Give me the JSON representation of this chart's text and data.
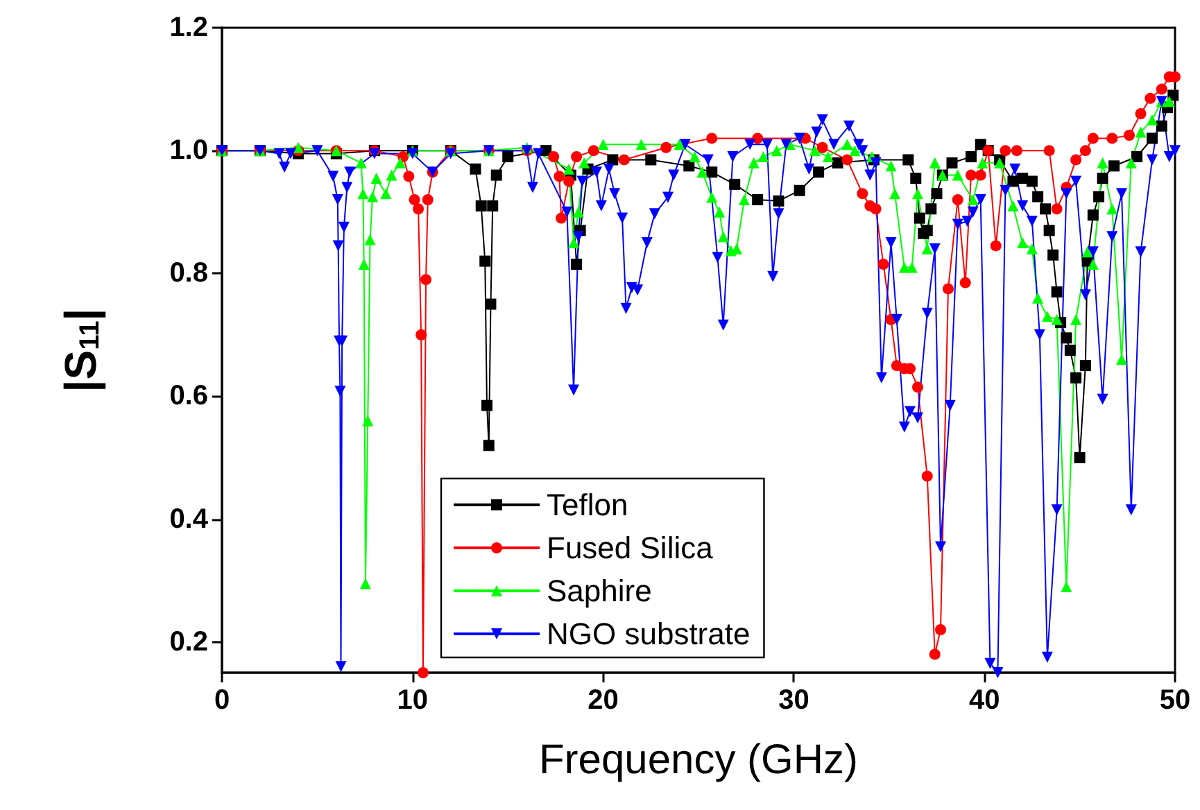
{
  "chart_data": {
    "type": "line",
    "xlabel": "Frequency (GHz)",
    "ylabel": "|S$_{11}$|",
    "xlim": [
      0,
      50
    ],
    "xticks": [
      0,
      10,
      20,
      30,
      40,
      50
    ],
    "ylim": [
      0.15,
      1.2
    ],
    "yticks": [
      0.2,
      0.4,
      0.6,
      0.8,
      {
        "value": 1.0,
        "label": "1.0"
      },
      1.2
    ],
    "grid": false,
    "legend": "bottom",
    "line_style": "solid",
    "series": [
      {
        "name": "Teflon",
        "color": "#000000",
        "marker": "square",
        "x": [
          0,
          2,
          4,
          6,
          8,
          10,
          12,
          13.3,
          13.6,
          13.8,
          13.9,
          14.0,
          14.1,
          14.2,
          14.4,
          15,
          17,
          18.3,
          18.6,
          18.8,
          19.2,
          20.5,
          22.5,
          24.5,
          25.7,
          26.9,
          28.1,
          29.2,
          30.3,
          31.3,
          32.3,
          34.2,
          36.0,
          36.4,
          36.6,
          36.8,
          37.0,
          37.2,
          37.5,
          37.8,
          38.3,
          39.3,
          39.8,
          40.2,
          40.8,
          41.5,
          42.0,
          42.5,
          42.8,
          43.2,
          43.4,
          43.6,
          43.8,
          44.0,
          44.3,
          44.5,
          44.8,
          45.0,
          45.3,
          45.4,
          45.7,
          46.0,
          46.2,
          46.8,
          48.0,
          48.8,
          49.3,
          49.6,
          49.9
        ],
        "values": [
          1.0,
          1.0,
          0.995,
          0.995,
          1.0,
          1.0,
          1.0,
          0.97,
          0.91,
          0.82,
          0.585,
          0.52,
          0.75,
          0.91,
          0.96,
          0.99,
          1.0,
          0.96,
          0.815,
          0.87,
          0.97,
          0.985,
          0.985,
          0.975,
          0.965,
          0.945,
          0.92,
          0.918,
          0.935,
          0.965,
          0.98,
          0.985,
          0.985,
          0.955,
          0.89,
          0.865,
          0.87,
          0.905,
          0.93,
          0.96,
          0.98,
          0.99,
          1.01,
          1.0,
          0.985,
          0.95,
          0.955,
          0.95,
          0.925,
          0.905,
          0.87,
          0.83,
          0.77,
          0.72,
          0.695,
          0.675,
          0.63,
          0.5,
          0.65,
          0.82,
          0.895,
          0.925,
          0.955,
          0.975,
          0.99,
          1.02,
          1.04,
          1.07,
          1.09
        ]
      },
      {
        "name": "Fused Silica",
        "color": "#ff0000",
        "marker": "circle",
        "x": [
          0,
          2,
          4,
          6,
          8,
          9.5,
          9.8,
          10.1,
          10.3,
          10.45,
          10.55,
          10.7,
          10.8,
          11.05,
          12,
          14,
          16,
          17.4,
          17.7,
          17.8,
          18.2,
          18.6,
          19.5,
          21.1,
          23.3,
          25.7,
          28.1,
          30.6,
          31.5,
          32.8,
          33.6,
          34.0,
          34.3,
          34.7,
          35.1,
          35.4,
          35.8,
          36.1,
          36.5,
          37.0,
          37.4,
          37.7,
          38.1,
          38.6,
          39.0,
          39.3,
          39.8,
          40.2,
          40.6,
          41.1,
          41.7,
          43.4,
          43.8,
          44.3,
          44.8,
          45.3,
          45.7,
          46.7,
          47.6,
          48.2,
          48.7,
          49.3,
          49.7,
          50
        ],
        "values": [
          1.0,
          1.0,
          1.0,
          1.0,
          1.0,
          0.99,
          0.958,
          0.92,
          0.905,
          0.7,
          0.15,
          0.79,
          0.92,
          0.965,
          1.0,
          1.0,
          1.0,
          0.99,
          0.958,
          0.89,
          0.95,
          0.99,
          1.0,
          0.985,
          1.005,
          1.02,
          1.02,
          1.02,
          1.005,
          0.985,
          0.93,
          0.91,
          0.905,
          0.815,
          0.725,
          0.65,
          0.645,
          0.645,
          0.615,
          0.47,
          0.18,
          0.22,
          0.775,
          0.92,
          0.785,
          0.96,
          0.96,
          1.0,
          0.845,
          1.0,
          1.0,
          1.0,
          0.905,
          0.94,
          0.985,
          1.0,
          1.02,
          1.02,
          1.025,
          1.06,
          1.085,
          1.1,
          1.12,
          1.12
        ]
      },
      {
        "name": "Saphire",
        "color": "#00ff00",
        "marker": "triangle",
        "x": [
          0,
          2,
          4,
          6,
          7.3,
          7.4,
          7.45,
          7.53,
          7.65,
          7.77,
          7.9,
          8.1,
          8.6,
          8.9,
          9.35,
          10,
          12,
          14,
          16,
          18.2,
          18.45,
          18.7,
          19,
          20,
          22,
          24,
          24.8,
          25.2,
          25.7,
          26.1,
          26.3,
          26.7,
          27.0,
          27.4,
          27.9,
          28.4,
          29.1,
          29.8,
          31.1,
          31.8,
          32.8,
          33.2,
          34.1,
          35.1,
          35.3,
          35.8,
          36.2,
          36.5,
          37.0,
          37.4,
          37.8,
          38.6,
          39.4,
          39.9,
          40.8,
          41.5,
          42.0,
          42.5,
          42.8,
          43.3,
          43.8,
          44.3,
          44.8,
          45.4,
          45.7,
          46.2,
          46.7,
          47.2,
          47.7,
          48.2,
          48.8,
          49.3,
          49.7
        ],
        "values": [
          1.0,
          1.0,
          1.005,
          1.0,
          0.98,
          0.93,
          0.815,
          0.295,
          0.56,
          0.855,
          0.925,
          0.955,
          0.93,
          0.96,
          0.98,
          1.0,
          1.0,
          1.0,
          1.005,
          0.97,
          0.85,
          0.9,
          0.98,
          1.01,
          1.01,
          1.01,
          0.99,
          0.965,
          0.924,
          0.9,
          0.86,
          0.837,
          0.84,
          0.92,
          0.98,
          0.99,
          1.0,
          1.01,
          1.0,
          0.99,
          1.01,
          1.0,
          0.99,
          0.975,
          0.93,
          0.81,
          0.81,
          0.93,
          0.84,
          0.98,
          0.96,
          0.96,
          0.92,
          0.98,
          0.98,
          0.91,
          0.85,
          0.84,
          0.76,
          0.73,
          0.725,
          0.29,
          0.725,
          0.835,
          0.815,
          0.98,
          0.905,
          0.66,
          0.98,
          1.03,
          1.05,
          1.08,
          1.08
        ]
      },
      {
        "name": "NGO substrate",
        "color": "#0000ff",
        "marker": "triangle-down",
        "x": [
          0,
          2,
          3.0,
          3.28,
          3.6,
          5,
          5.83,
          6.07,
          6.1,
          6.15,
          6.2,
          6.24,
          6.3,
          6.4,
          6.56,
          6.7,
          8,
          10,
          11.05,
          12,
          14,
          16,
          16.3,
          16.6,
          18.1,
          18.45,
          18.7,
          18.9,
          19.65,
          19.9,
          20.3,
          20.6,
          21.0,
          21.2,
          21.5,
          21.8,
          22.3,
          22.7,
          23.4,
          23.7,
          24.3,
          25.5,
          26.0,
          26.3,
          26.8,
          27.7,
          28.6,
          28.9,
          29.2,
          29.6,
          30.3,
          30.8,
          31.2,
          31.5,
          32.1,
          32.9,
          33.4,
          33.6,
          34.0,
          34.3,
          34.6,
          35.1,
          35.4,
          35.8,
          36.1,
          36.5,
          37.0,
          37.4,
          37.7,
          38.2,
          38.6,
          39.1,
          39.4,
          39.8,
          40.3,
          40.7,
          41.1,
          41.6,
          42.0,
          42.5,
          42.9,
          43.3,
          43.8,
          44.3,
          44.8,
          45.3,
          45.7,
          46.2,
          46.7,
          47.2,
          47.7,
          48.2,
          48.8,
          49.3,
          49.7,
          50
        ],
        "values": [
          1.0,
          1.0,
          0.995,
          0.973,
          0.995,
          1.0,
          0.958,
          0.92,
          0.845,
          0.69,
          0.608,
          0.16,
          0.69,
          0.875,
          0.94,
          0.965,
          0.995,
          0.995,
          0.965,
          0.995,
          1.0,
          1.0,
          0.94,
          0.995,
          0.9,
          0.61,
          0.86,
          0.95,
          0.965,
          0.91,
          0.97,
          0.93,
          0.89,
          0.743,
          0.777,
          0.773,
          0.85,
          0.897,
          0.924,
          0.96,
          1.01,
          0.985,
          0.826,
          0.716,
          0.99,
          1.01,
          1.01,
          0.795,
          0.897,
          1.01,
          1.02,
          0.97,
          1.03,
          1.05,
          1.01,
          1.04,
          1.01,
          1.0,
          0.96,
          0.98,
          0.63,
          0.85,
          0.725,
          0.55,
          0.575,
          0.565,
          0.735,
          0.84,
          0.355,
          0.585,
          0.88,
          0.885,
          0.9,
          0.92,
          0.165,
          0.15,
          0.935,
          0.97,
          0.91,
          0.885,
          0.7,
          0.175,
          0.415,
          0.93,
          0.95,
          0.765,
          0.835,
          0.595,
          0.86,
          0.93,
          0.415,
          0.835,
          0.985,
          1.08,
          0.99,
          1.0
        ]
      }
    ]
  }
}
